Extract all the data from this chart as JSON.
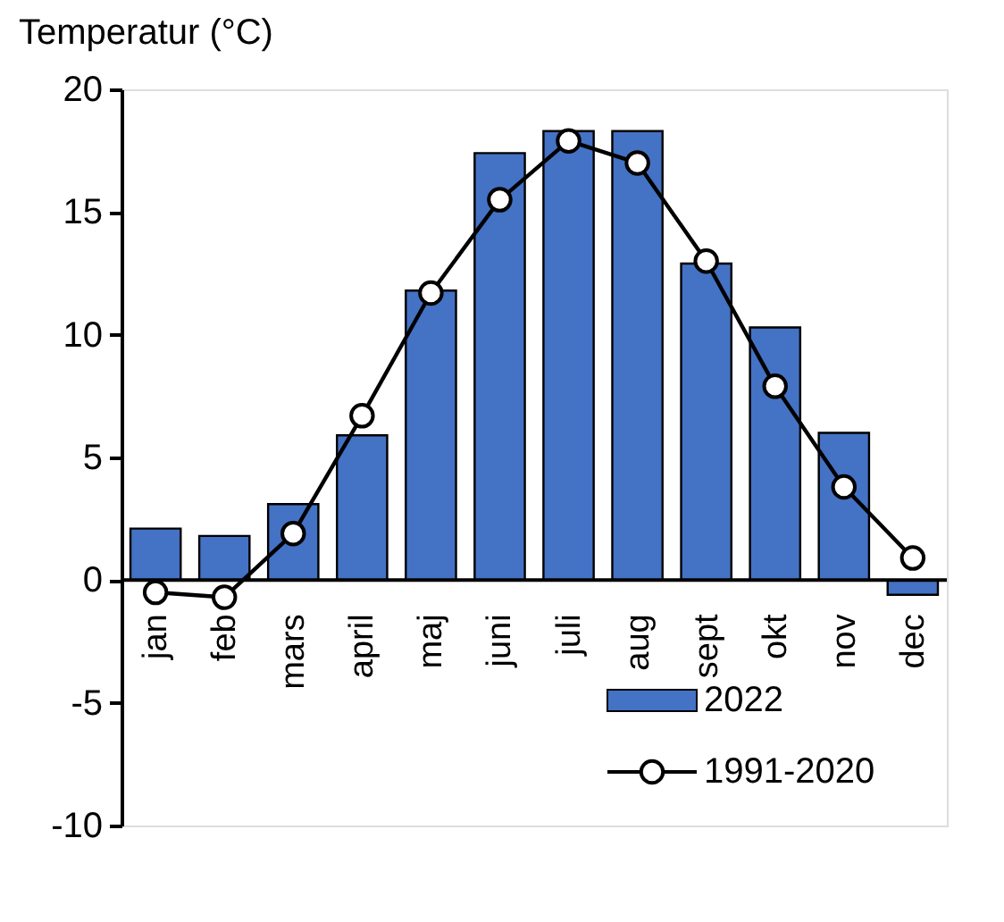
{
  "chart_data": {
    "type": "bar",
    "ylabel": "Temperatur (°C)",
    "categories": [
      "jan",
      "feb",
      "mars",
      "april",
      "maj",
      "juni",
      "juli",
      "aug",
      "sept",
      "okt",
      "nov",
      "dec"
    ],
    "series": [
      {
        "name": "2022",
        "color": "#4472c4",
        "values": [
          2.1,
          1.8,
          3.1,
          5.9,
          11.8,
          17.4,
          18.3,
          18.3,
          12.9,
          10.3,
          6.0,
          -0.6
        ]
      },
      {
        "name": "1991-2020",
        "type": "line",
        "color": "#000000",
        "marker": "circle",
        "values": [
          -0.5,
          -0.7,
          1.9,
          6.7,
          11.7,
          15.5,
          17.9,
          17.0,
          13.0,
          7.9,
          3.8,
          0.9
        ]
      }
    ],
    "ylim": [
      -10,
      20
    ],
    "yticks": [
      -10,
      -5,
      0,
      5,
      10,
      15,
      20
    ],
    "grid": false,
    "legend": "bottom right"
  }
}
